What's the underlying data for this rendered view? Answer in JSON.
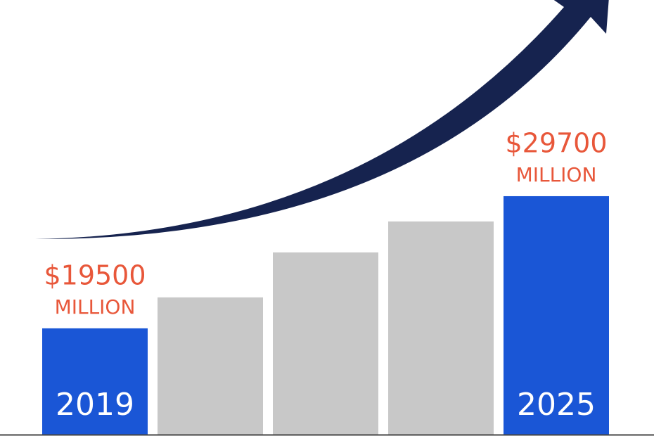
{
  "chart_data": {
    "type": "bar",
    "categories": [
      "2019",
      null,
      null,
      null,
      "2025"
    ],
    "values": [
      19500,
      21890,
      25360,
      27750,
      29700
    ],
    "value_labels": [
      "$19500",
      null,
      null,
      null,
      "$29700"
    ],
    "unit": "MILLION",
    "colors": [
      "#1a56d6",
      "#c8c8c8",
      "#c8c8c8",
      "#c8c8c8",
      "#1a56d6"
    ],
    "ylim": [
      11300,
      44840
    ]
  }
}
